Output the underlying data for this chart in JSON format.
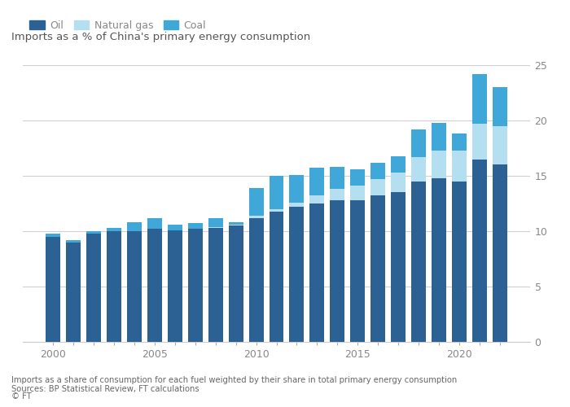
{
  "years": [
    2000,
    2001,
    2002,
    2003,
    2004,
    2005,
    2006,
    2007,
    2008,
    2009,
    2010,
    2011,
    2012,
    2013,
    2014,
    2015,
    2016,
    2017,
    2018,
    2019,
    2020,
    2021,
    2022
  ],
  "oil": [
    9.5,
    9.0,
    9.8,
    10.0,
    10.0,
    10.2,
    10.1,
    10.2,
    10.3,
    10.5,
    11.2,
    11.8,
    12.2,
    12.5,
    12.8,
    12.8,
    13.2,
    13.5,
    14.5,
    14.8,
    14.5,
    16.5,
    16.0
  ],
  "natural_gas": [
    0.0,
    0.0,
    0.0,
    0.0,
    0.0,
    0.0,
    0.0,
    0.0,
    0.1,
    0.1,
    0.2,
    0.2,
    0.4,
    0.7,
    1.0,
    1.3,
    1.5,
    1.8,
    2.2,
    2.5,
    2.8,
    3.2,
    3.5
  ],
  "coal": [
    0.3,
    0.2,
    0.2,
    0.3,
    0.8,
    1.0,
    0.5,
    0.5,
    0.8,
    0.2,
    2.5,
    3.0,
    2.5,
    2.5,
    2.0,
    1.5,
    1.5,
    1.5,
    2.5,
    2.5,
    1.5,
    4.5,
    3.5
  ],
  "oil_color": "#2c6194",
  "natural_gas_color": "#b3dff0",
  "coal_color": "#3fa8d8",
  "title": "Imports as a % of China's primary energy consumption",
  "legend_labels": [
    "Oil",
    "Natural gas",
    "Coal"
  ],
  "ylim": [
    0,
    25
  ],
  "yticks": [
    0,
    5,
    10,
    15,
    20,
    25
  ],
  "footnote1": "Imports as a share of consumption for each fuel weighted by their share in total primary energy consumption",
  "footnote2": "Sources: BP Statistical Review, FT calculations",
  "footnote3": "© FT",
  "bg_color": "#ffffff",
  "plot_bg_color": "#ffffff",
  "grid_color": "#d0d0d0",
  "bar_width": 0.72,
  "title_color": "#555555",
  "tick_color": "#888888",
  "footnote_color": "#666666"
}
